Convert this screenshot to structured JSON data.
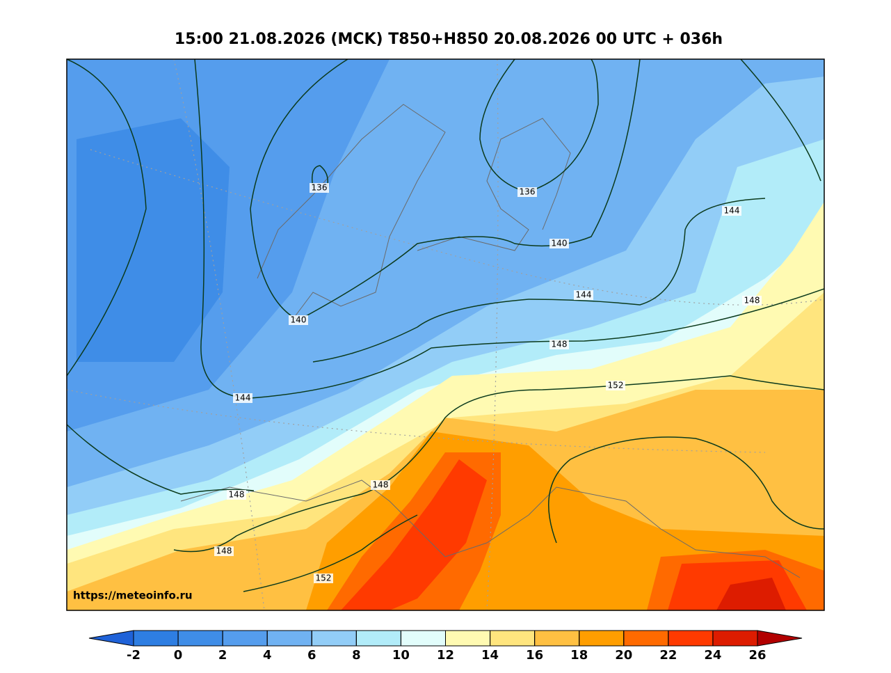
{
  "title": "15:00 21.08.2026 (MCK) T850+H850 20.08.2026 00 UTC + 036h",
  "watermark": "https://meteoinfo.ru",
  "contour_labels": [
    "136",
    "136",
    "140",
    "140",
    "144",
    "144",
    "144",
    "148",
    "148",
    "148",
    "148",
    "148",
    "152",
    "152"
  ],
  "colorbar": {
    "ticks": [
      -2,
      0,
      2,
      4,
      6,
      8,
      10,
      12,
      14,
      16,
      18,
      20,
      22,
      24,
      26
    ],
    "colors": [
      "#1f62d8",
      "#2e7ee2",
      "#3f8de7",
      "#559ded",
      "#70b2f2",
      "#92cdf7",
      "#b2ecf9",
      "#e2fdfb",
      "#fffab2",
      "#ffe57e",
      "#ffc042",
      "#ff9e00",
      "#ff6a00",
      "#ff3a00",
      "#dd1c00",
      "#b20000"
    ]
  }
}
